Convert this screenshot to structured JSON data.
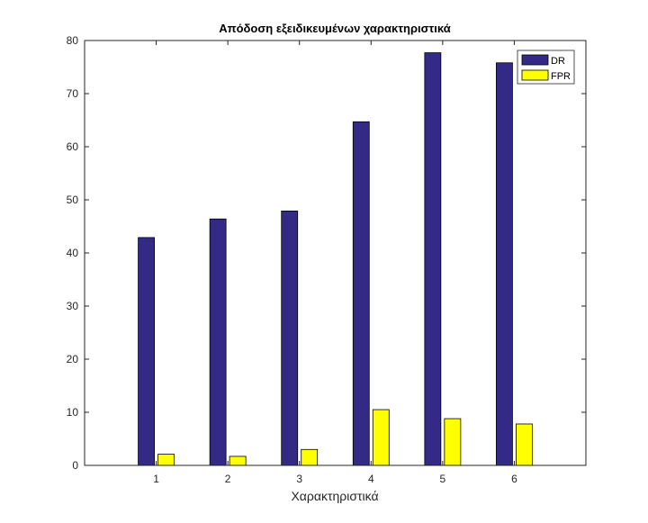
{
  "chart_data": {
    "type": "bar",
    "title": "Απόδοση εξειδικευμένων χαρακτηριστικά",
    "xlabel": "Χαρακτηριστικά",
    "ylabel": "",
    "categories": [
      "1",
      "2",
      "3",
      "4",
      "5",
      "6"
    ],
    "ylim": [
      0,
      80
    ],
    "xlim": [
      0,
      7
    ],
    "yticks": [
      0,
      10,
      20,
      30,
      40,
      50,
      60,
      70,
      80
    ],
    "grid": false,
    "legend_position": "top-right",
    "series": [
      {
        "name": "DR",
        "color": "#332a86",
        "values": [
          42.9,
          46.4,
          47.9,
          64.7,
          77.7,
          75.8
        ]
      },
      {
        "name": "FPR",
        "color": "#ffff00",
        "values": [
          2.1,
          1.7,
          3.0,
          10.5,
          8.8,
          7.8
        ]
      }
    ]
  }
}
